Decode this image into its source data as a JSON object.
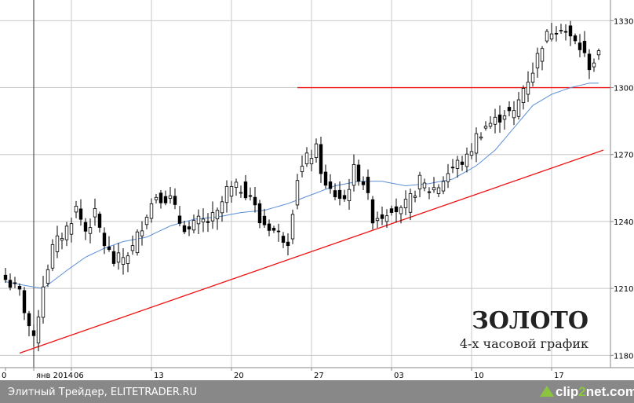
{
  "chart_data": {
    "type": "candlestick",
    "title": "ЗОЛОТО",
    "subtitle": "4-х часовой график",
    "y_ticks": [
      1180,
      1210,
      1240,
      1270,
      1300,
      1330
    ],
    "ylim": [
      1178,
      1334
    ],
    "x_ticks": [
      {
        "label": "0",
        "index": 0
      },
      {
        "label": "янв 2014",
        "index": 6
      },
      {
        "label": "06",
        "index": 14
      },
      {
        "label": "13",
        "index": 31
      },
      {
        "label": "20",
        "index": 48
      },
      {
        "label": "27",
        "index": 65
      },
      {
        "label": "03",
        "index": 82
      },
      {
        "label": "10",
        "index": 99
      },
      {
        "label": "17",
        "index": 116
      }
    ],
    "candle_count": 127,
    "close_anchors": [
      [
        0,
        1214
      ],
      [
        3,
        1208
      ],
      [
        6,
        1186
      ],
      [
        8,
        1212
      ],
      [
        10,
        1228
      ],
      [
        13,
        1237
      ],
      [
        15,
        1246
      ],
      [
        17,
        1236
      ],
      [
        19,
        1243
      ],
      [
        21,
        1230
      ],
      [
        23,
        1222
      ],
      [
        25,
        1224
      ],
      [
        27,
        1228
      ],
      [
        30,
        1244
      ],
      [
        32,
        1252
      ],
      [
        35,
        1250
      ],
      [
        37,
        1240
      ],
      [
        39,
        1236
      ],
      [
        41,
        1240
      ],
      [
        43,
        1240
      ],
      [
        45,
        1243
      ],
      [
        47,
        1254
      ],
      [
        50,
        1255
      ],
      [
        52,
        1252
      ],
      [
        54,
        1240
      ],
      [
        56,
        1238
      ],
      [
        58,
        1234
      ],
      [
        60,
        1232
      ],
      [
        62,
        1260
      ],
      [
        64,
        1268
      ],
      [
        66,
        1272
      ],
      [
        68,
        1255
      ],
      [
        70,
        1252
      ],
      [
        72,
        1250
      ],
      [
        74,
        1263
      ],
      [
        76,
        1258
      ],
      [
        78,
        1242
      ],
      [
        80,
        1243
      ],
      [
        82,
        1247
      ],
      [
        84,
        1244
      ],
      [
        86,
        1250
      ],
      [
        88,
        1258
      ],
      [
        90,
        1254
      ],
      [
        92,
        1256
      ],
      [
        94,
        1262
      ],
      [
        96,
        1266
      ],
      [
        98,
        1268
      ],
      [
        100,
        1278
      ],
      [
        102,
        1283
      ],
      [
        104,
        1285
      ],
      [
        106,
        1289
      ],
      [
        108,
        1288
      ],
      [
        110,
        1300
      ],
      [
        112,
        1308
      ],
      [
        114,
        1320
      ],
      [
        116,
        1326
      ],
      [
        118,
        1328
      ],
      [
        120,
        1322
      ],
      [
        122,
        1318
      ],
      [
        124,
        1310
      ],
      [
        126,
        1314
      ]
    ],
    "moving_average_anchors": [
      [
        0,
        1213
      ],
      [
        5,
        1211
      ],
      [
        8,
        1210
      ],
      [
        13,
        1218
      ],
      [
        17,
        1224
      ],
      [
        21,
        1228
      ],
      [
        25,
        1231
      ],
      [
        30,
        1233
      ],
      [
        35,
        1238
      ],
      [
        40,
        1241
      ],
      [
        45,
        1242
      ],
      [
        50,
        1244
      ],
      [
        55,
        1245
      ],
      [
        60,
        1248
      ],
      [
        65,
        1252
      ],
      [
        70,
        1256
      ],
      [
        75,
        1258
      ],
      [
        80,
        1258
      ],
      [
        85,
        1256
      ],
      [
        90,
        1257
      ],
      [
        95,
        1259
      ],
      [
        100,
        1265
      ],
      [
        104,
        1272
      ],
      [
        108,
        1282
      ],
      [
        112,
        1292
      ],
      [
        116,
        1297
      ],
      [
        120,
        1300
      ],
      [
        124,
        1302
      ],
      [
        126,
        1302
      ]
    ],
    "horizontal_level": {
      "value": 1300,
      "from_index": 62,
      "to_index": 127
    },
    "trend_line": {
      "from": [
        3,
        1181
      ],
      "to": [
        127,
        1272
      ]
    },
    "colors": {
      "candle": "#000000",
      "moving_average": "#5b8fd6",
      "levels": "#ee1111",
      "grid": "#c8c8c8",
      "footer_bg": "#888888"
    }
  },
  "footer": {
    "left_text": "Элитный Трейдер, ELITETRADER.RU",
    "brand_prefix": "clip",
    "brand_number": "2",
    "brand_suffix": "net.com"
  }
}
